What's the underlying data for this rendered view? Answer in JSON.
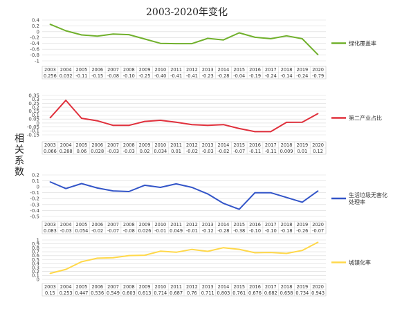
{
  "title": "2003-2020年变化",
  "ylabel": "相关系数",
  "chart_data": [
    {
      "type": "line",
      "series": [
        {
          "name": "绿化覆盖率",
          "color": "#70b02c",
          "values": [
            0.256,
            0.032,
            -0.11,
            -0.15,
            -0.08,
            -0.1,
            -0.25,
            -0.4,
            -0.41,
            -0.41,
            -0.23,
            -0.28,
            -0.04,
            -0.19,
            -0.24,
            -0.14,
            -0.24,
            -0.79
          ]
        }
      ],
      "categories": [
        "2003",
        "2004",
        "2005",
        "2006",
        "2007",
        "2008",
        "2009",
        "2010",
        "2011",
        "2012",
        "2013",
        "2014",
        "2015",
        "2016",
        "2017",
        "2018",
        "2019",
        "2020"
      ],
      "table_row": [
        "0.256",
        "0.032",
        "-0.11",
        "-0.15",
        "-0.08",
        "-0.10",
        "-0.25",
        "-0.40",
        "-0.41",
        "-0.41",
        "-0.23",
        "-0.28",
        "-0.04",
        "-0.19",
        "-0.24",
        "-0.14",
        "-0.24",
        "-0.79"
      ],
      "yticks": [
        "0.4",
        "0.2",
        "0",
        "-0.2",
        "-0.4",
        "-0.6",
        "-0.8",
        "-1"
      ],
      "ylim": [
        -1,
        0.4
      ]
    },
    {
      "type": "line",
      "series": [
        {
          "name": "第二产业占比",
          "color": "#e0303c",
          "values": [
            0.066,
            0.288,
            0.06,
            0.028,
            -0.03,
            -0.03,
            0.02,
            0.034,
            0.01,
            -0.02,
            -0.03,
            -0.02,
            -0.07,
            -0.11,
            -0.11,
            0.009,
            0.01,
            0.12
          ]
        }
      ],
      "categories": [
        "2003",
        "2004",
        "2005",
        "2006",
        "2007",
        "2008",
        "2009",
        "2010",
        "2011",
        "2012",
        "2013",
        "2014",
        "2015",
        "2016",
        "2017",
        "2018",
        "2019",
        "2020"
      ],
      "table_row": [
        "0.066",
        "0.288",
        "0.06",
        "0.028",
        "-0.03",
        "-0.03",
        "0.02",
        "0.034",
        "0.01",
        "-0.02",
        "-0.03",
        "-0.02",
        "-0.07",
        "-0.11",
        "-0.11",
        "0.009",
        "0.01",
        "0.12"
      ],
      "yticks": [
        "0.35",
        "0.3",
        "0.25",
        "0.2",
        "0.15",
        "0.1",
        "0.05",
        "0",
        "-0.05",
        "-0.1",
        "-0.15"
      ],
      "ylim": [
        -0.15,
        0.35
      ]
    },
    {
      "type": "line",
      "series": [
        {
          "name": "生活垃圾无害化处理率",
          "color": "#3355c8",
          "values": [
            0.083,
            -0.03,
            0.054,
            -0.02,
            -0.07,
            -0.08,
            0.026,
            -0.01,
            0.049,
            -0.01,
            -0.12,
            -0.28,
            -0.38,
            -0.1,
            -0.1,
            -0.18,
            -0.26,
            -0.07
          ]
        }
      ],
      "categories": [
        "2003",
        "2004",
        "2005",
        "2006",
        "2007",
        "2008",
        "2009",
        "2010",
        "2011",
        "2012",
        "2013",
        "2014",
        "2015",
        "2016",
        "2017",
        "2018",
        "2019",
        "2020"
      ],
      "table_row": [
        "0.083",
        "-0.03",
        "0.054",
        "-0.02",
        "-0.07",
        "-0.08",
        "0.026",
        "-0.01",
        "0.049",
        "-0.01",
        "-0.12",
        "-0.28",
        "-0.38",
        "-0.10",
        "-0.10",
        "-0.18",
        "-0.26",
        "-0.07"
      ],
      "yticks": [
        "0.2",
        "0.1",
        "0",
        "-0.1",
        "-0.2",
        "-0.3",
        "-0.4",
        "-0.5"
      ],
      "ylim": [
        -0.5,
        0.2
      ]
    },
    {
      "type": "line",
      "series": [
        {
          "name": "城镇化率",
          "color": "#ffd84a",
          "values": [
            0.15,
            0.253,
            0.447,
            0.536,
            0.549,
            0.603,
            0.613,
            0.714,
            0.687,
            0.76,
            0.711,
            0.803,
            0.761,
            0.676,
            0.682,
            0.658,
            0.734,
            0.943
          ]
        }
      ],
      "categories": [
        "2003",
        "2004",
        "2005",
        "2006",
        "2007",
        "2008",
        "2009",
        "2010",
        "2011",
        "2012",
        "2013",
        "2014",
        "2015",
        "2016",
        "2017",
        "2018",
        "2019",
        "2020"
      ],
      "table_row": [
        "0.15",
        "0.253",
        "0.447",
        "0.536",
        "0.549",
        "0.603",
        "0.613",
        "0.714",
        "0.687",
        "0.76",
        "0.711",
        "0.803",
        "0.761",
        "0.676",
        "0.682",
        "0.658",
        "0.734",
        "0.943"
      ],
      "yticks": [
        "1",
        "0.9",
        "0.8",
        "0.7",
        "0.6",
        "0.5",
        "0.4",
        "0.3",
        "0.2",
        "0.1",
        "0"
      ],
      "ylim": [
        0,
        1
      ]
    }
  ]
}
